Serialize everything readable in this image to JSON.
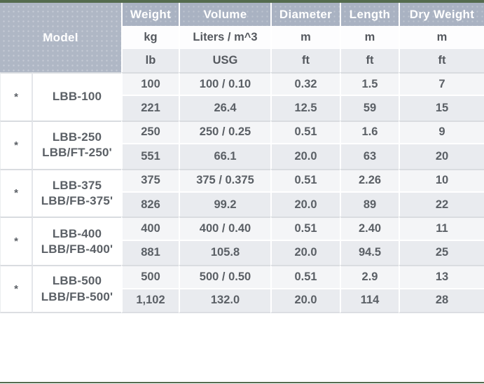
{
  "theme": {
    "accent_green": "#546b4e",
    "header_bg": "#a9b2c2",
    "row_alt_bg": "#e9ebef",
    "text_gray": "#5b6066"
  },
  "table": {
    "headers": {
      "model": "Model",
      "columns": [
        "Weight",
        "Volume",
        "Diameter",
        "Length",
        "Dry Weight"
      ]
    },
    "units_metric": [
      "kg",
      "Liters / m^3",
      "m",
      "m",
      "m"
    ],
    "units_imperial": [
      "lb",
      "USG",
      "ft",
      "ft",
      "ft"
    ],
    "groups": [
      {
        "marker": "*",
        "model": "LBB-100",
        "model2": "",
        "metric": [
          "100",
          "100 / 0.10",
          "0.32",
          "1.5",
          "7"
        ],
        "imperial": [
          "221",
          "26.4",
          "12.5",
          "59",
          "15"
        ]
      },
      {
        "marker": "*",
        "model": "LBB-250",
        "model2": "LBB/FT-250'",
        "metric": [
          "250",
          "250 / 0.25",
          "0.51",
          "1.6",
          "9"
        ],
        "imperial": [
          "551",
          "66.1",
          "20.0",
          "63",
          "20"
        ]
      },
      {
        "marker": "*",
        "model": "LBB-375",
        "model2": "LBB/FB-375'",
        "metric": [
          "375",
          "375 / 0.375",
          "0.51",
          "2.26",
          "10"
        ],
        "imperial": [
          "826",
          "99.2",
          "20.0",
          "89",
          "22"
        ]
      },
      {
        "marker": "*",
        "model": "LBB-400",
        "model2": "LBB/FB-400'",
        "metric": [
          "400",
          "400 / 0.40",
          "0.51",
          "2.40",
          "11"
        ],
        "imperial": [
          "881",
          "105.8",
          "20.0",
          "94.5",
          "25"
        ]
      },
      {
        "marker": "*",
        "model": "LBB-500",
        "model2": "LBB/FB-500'",
        "metric": [
          "500",
          "500 / 0.50",
          "0.51",
          "2.9",
          "13"
        ],
        "imperial": [
          "1,102",
          "132.0",
          "20.0",
          "114",
          "28"
        ]
      }
    ]
  }
}
